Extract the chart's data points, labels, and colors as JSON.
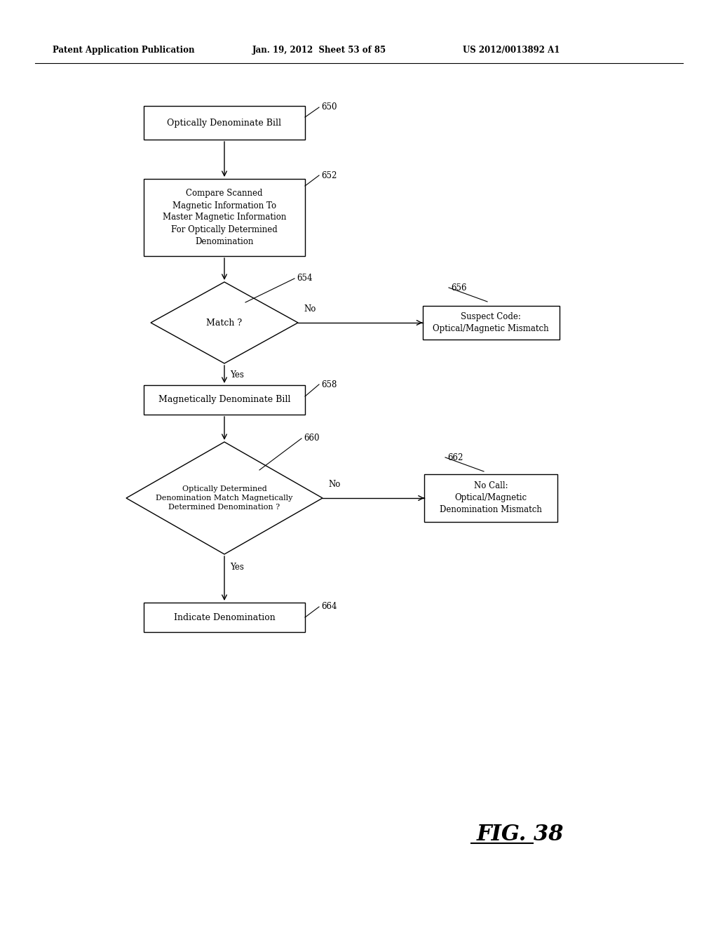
{
  "background_color": "#ffffff",
  "header_left": "Patent Application Publication",
  "header_center": "Jan. 19, 2012  Sheet 53 of 85",
  "header_right": "US 2012/0013892 A1",
  "figure_label": "FIG. 38"
}
